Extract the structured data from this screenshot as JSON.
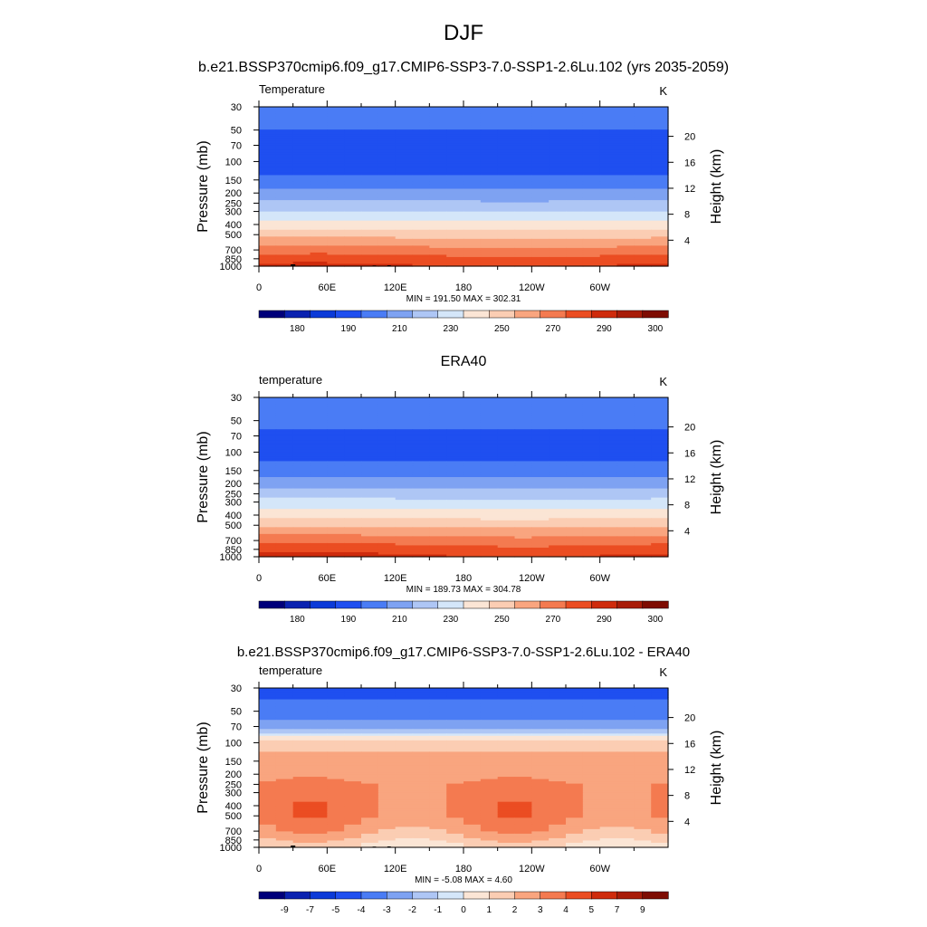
{
  "figure": {
    "title": "DJF",
    "subtitle": "b.e21.BSSP370cmip6.f09_g17.CMIP6-SSP3-7.0-SSP1-2.6Lu.102 (yrs 2035-2059)"
  },
  "chart_data": [
    {
      "type": "heatmap",
      "panel_title": "",
      "left_label": "Temperature",
      "units": "K",
      "ylabel": "Pressure (mb)",
      "ylabel_right": "Height (km)",
      "x_ticks": [
        "0",
        "60E",
        "120E",
        "180",
        "120W",
        "60W"
      ],
      "y_ticks": [
        "30",
        "50",
        "70",
        "100",
        "150",
        "200",
        "250",
        "300",
        "400",
        "500",
        "700",
        "850",
        "1000"
      ],
      "height_ticks": [
        "4",
        "8",
        "12",
        "16",
        "20"
      ],
      "stats": "MIN = 191.50  MAX = 302.31",
      "min": 191.5,
      "max": 302.31,
      "colorbar_labels": [
        "180",
        "190",
        "210",
        "230",
        "250",
        "270",
        "290",
        "300"
      ],
      "contour_levels": [
        180,
        185,
        190,
        200,
        210,
        220,
        230,
        240,
        250,
        260,
        270,
        280,
        290,
        295,
        300
      ],
      "profile_levels_mb": [
        30,
        50,
        70,
        100,
        150,
        200,
        250,
        300,
        400,
        500,
        700,
        850,
        1000
      ],
      "profile_values_K": [
        205,
        200,
        196,
        195,
        202,
        213,
        222,
        230,
        244,
        256,
        274,
        284,
        291
      ]
    },
    {
      "type": "heatmap",
      "panel_title": "ERA40",
      "left_label": "temperature",
      "units": "K",
      "ylabel": "Pressure (mb)",
      "ylabel_right": "Height (km)",
      "x_ticks": [
        "0",
        "60E",
        "120E",
        "180",
        "120W",
        "60W"
      ],
      "y_ticks": [
        "30",
        "50",
        "70",
        "100",
        "150",
        "200",
        "250",
        "300",
        "400",
        "500",
        "700",
        "850",
        "1000"
      ],
      "height_ticks": [
        "4",
        "8",
        "12",
        "16",
        "20"
      ],
      "stats": "MIN = 189.73  MAX = 304.78",
      "min": 189.73,
      "max": 304.78,
      "colorbar_labels": [
        "180",
        "190",
        "210",
        "230",
        "250",
        "270",
        "290",
        "300"
      ],
      "contour_levels": [
        180,
        185,
        190,
        200,
        210,
        220,
        230,
        240,
        250,
        260,
        270,
        280,
        290,
        295,
        300
      ],
      "profile_levels_mb": [
        30,
        50,
        70,
        100,
        150,
        200,
        250,
        300,
        400,
        500,
        700,
        850,
        1000
      ],
      "profile_values_K": [
        208,
        203,
        198,
        196,
        204,
        215,
        225,
        233,
        246,
        258,
        275,
        285,
        292
      ]
    },
    {
      "type": "heatmap",
      "panel_title": "b.e21.BSSP370cmip6.f09_g17.CMIP6-SSP3-7.0-SSP1-2.6Lu.102 - ERA40",
      "left_label": "temperature",
      "units": "K",
      "ylabel": "Pressure (mb)",
      "ylabel_right": "Height (km)",
      "x_ticks": [
        "0",
        "60E",
        "120E",
        "180",
        "120W",
        "60W"
      ],
      "y_ticks": [
        "30",
        "50",
        "70",
        "100",
        "150",
        "200",
        "250",
        "300",
        "400",
        "500",
        "700",
        "850",
        "1000"
      ],
      "height_ticks": [
        "4",
        "8",
        "12",
        "16",
        "20"
      ],
      "stats": "MIN =  -5.08  MAX =   4.60",
      "min": -5.08,
      "max": 4.6,
      "colorbar_labels": [
        "-9",
        "-7",
        "-5",
        "-4",
        "-3",
        "-2",
        "-1",
        "0",
        "1",
        "2",
        "3",
        "4",
        "5",
        "7",
        "9"
      ],
      "contour_levels": [
        -9,
        -7,
        -5,
        -4,
        -3,
        -2,
        -1,
        0,
        1,
        2,
        3,
        4,
        5,
        7,
        9
      ],
      "profile_levels_mb": [
        30,
        50,
        70,
        100,
        150,
        200,
        250,
        300,
        400,
        500,
        700,
        850,
        1000
      ],
      "profile_values_K": [
        -4.5,
        -3.5,
        -2.5,
        1.5,
        2.5,
        2.5,
        3.2,
        3.3,
        3.4,
        3.3,
        2.5,
        1.5,
        0.8
      ]
    }
  ],
  "colors": {
    "absolute_scale": [
      "#00007a",
      "#0a22b0",
      "#0b3ad8",
      "#1f4ff0",
      "#4a7cf5",
      "#7ea2f2",
      "#aec6f5",
      "#d4e6f9",
      "#fbe5d5",
      "#fbcdb3",
      "#f9a57f",
      "#f47a50",
      "#eb4d22",
      "#cf2b0c",
      "#a81c08",
      "#7e0c02"
    ],
    "difference_scale": [
      "#00007a",
      "#0a22b0",
      "#0b3ad8",
      "#1f4ff0",
      "#4a7cf5",
      "#7ea2f2",
      "#aec6f5",
      "#d4e6f9",
      "#fbe5d5",
      "#fbcdb3",
      "#f9a57f",
      "#f47a50",
      "#eb4d22",
      "#cf2b0c",
      "#a81c08",
      "#7e0c02"
    ],
    "topography": "#000000"
  }
}
